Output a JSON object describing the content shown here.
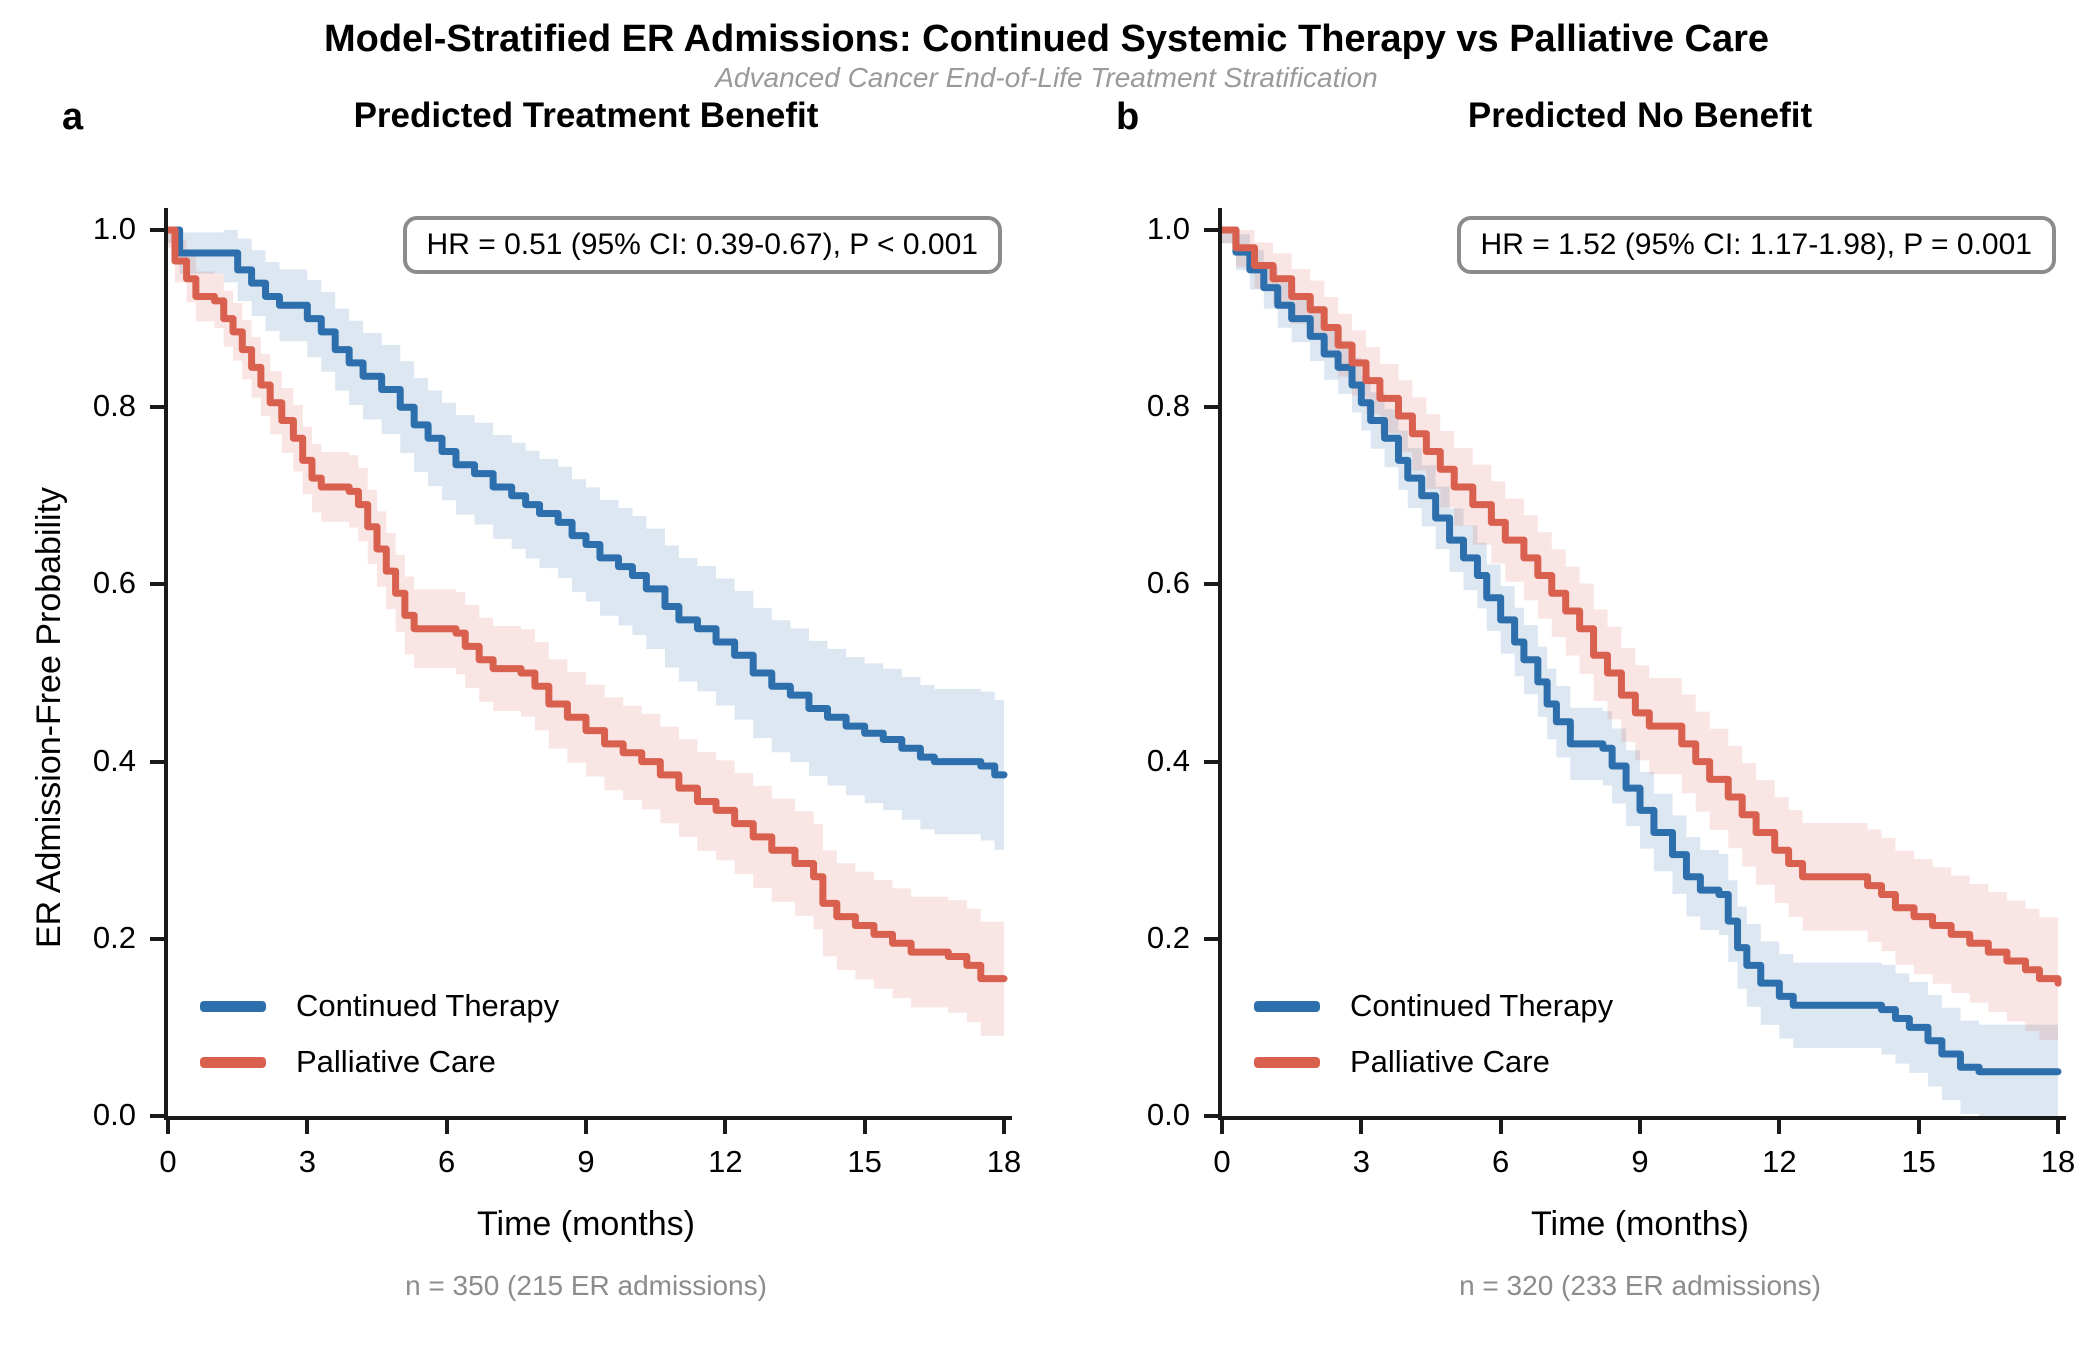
{
  "header": {
    "title": "Model-Stratified ER Admissions: Continued Systemic Therapy vs Palliative Care",
    "subtitle": "Advanced Cancer End-of-Life Treatment Stratification"
  },
  "colors": {
    "continued_therapy": "#2d6fac",
    "palliative_care": "#d9604e",
    "continued_band": "rgba(45,111,172,0.17)",
    "palliative_band": "rgba(217,96,78,0.16)",
    "axis": "#1a1a1a",
    "annotation_border": "#8c8c8c",
    "subtitle_gray": "#9a9a9a",
    "caption_gray": "#8c8c8c"
  },
  "chart_data": [
    {
      "type": "line",
      "subtype": "kaplan-meier-step",
      "panel_label": "a",
      "title": "Predicted Treatment Benefit",
      "annotation": "HR = 0.51 (95% CI: 0.39-0.67), P < 0.001",
      "caption": "n = 350 (215 ER admissions)",
      "xlabel": "Time (months)",
      "ylabel": "ER Admission-Free Probability",
      "xlim": [
        0,
        18
      ],
      "ylim": [
        0.0,
        1.0
      ],
      "xticks": [
        0,
        3,
        6,
        9,
        12,
        15,
        18
      ],
      "yticks": [
        0.0,
        0.2,
        0.4,
        0.6,
        0.8,
        1.0
      ],
      "grid": false,
      "legend_position": "lower-left",
      "series": [
        {
          "name": "Continued Therapy",
          "color": "#2d6fac",
          "band_color": "rgba(45,111,172,0.17)",
          "ci_halfwidth": [
            0.015,
            0.085
          ],
          "points": [
            [
              0,
              1.0
            ],
            [
              0.25,
              0.974
            ],
            [
              1.2,
              0.974
            ],
            [
              1.5,
              0.955
            ],
            [
              1.8,
              0.94
            ],
            [
              2.1,
              0.925
            ],
            [
              2.4,
              0.915
            ],
            [
              3.0,
              0.9
            ],
            [
              3.3,
              0.885
            ],
            [
              3.6,
              0.865
            ],
            [
              3.9,
              0.85
            ],
            [
              4.2,
              0.835
            ],
            [
              4.6,
              0.82
            ],
            [
              5.0,
              0.8
            ],
            [
              5.3,
              0.78
            ],
            [
              5.6,
              0.765
            ],
            [
              5.9,
              0.75
            ],
            [
              6.2,
              0.735
            ],
            [
              6.6,
              0.725
            ],
            [
              7.0,
              0.71
            ],
            [
              7.4,
              0.7
            ],
            [
              7.7,
              0.69
            ],
            [
              8.0,
              0.68
            ],
            [
              8.4,
              0.67
            ],
            [
              8.7,
              0.655
            ],
            [
              9.0,
              0.645
            ],
            [
              9.3,
              0.63
            ],
            [
              9.7,
              0.62
            ],
            [
              10.0,
              0.61
            ],
            [
              10.3,
              0.595
            ],
            [
              10.7,
              0.575
            ],
            [
              11.0,
              0.56
            ],
            [
              11.4,
              0.55
            ],
            [
              11.8,
              0.535
            ],
            [
              12.2,
              0.52
            ],
            [
              12.6,
              0.5
            ],
            [
              13.0,
              0.485
            ],
            [
              13.4,
              0.475
            ],
            [
              13.8,
              0.46
            ],
            [
              14.2,
              0.45
            ],
            [
              14.6,
              0.44
            ],
            [
              15.0,
              0.432
            ],
            [
              15.4,
              0.425
            ],
            [
              15.8,
              0.415
            ],
            [
              16.2,
              0.405
            ],
            [
              16.5,
              0.4
            ],
            [
              17.5,
              0.395
            ],
            [
              17.8,
              0.385
            ],
            [
              18,
              0.385
            ]
          ]
        },
        {
          "name": "Palliative Care",
          "color": "#d9604e",
          "band_color": "rgba(217,96,78,0.16)",
          "ci_halfwidth": [
            0.02,
            0.065
          ],
          "points": [
            [
              0,
              1.0
            ],
            [
              0.15,
              0.965
            ],
            [
              0.4,
              0.945
            ],
            [
              0.6,
              0.925
            ],
            [
              1.0,
              0.92
            ],
            [
              1.2,
              0.9
            ],
            [
              1.4,
              0.885
            ],
            [
              1.6,
              0.865
            ],
            [
              1.8,
              0.845
            ],
            [
              2.0,
              0.825
            ],
            [
              2.2,
              0.805
            ],
            [
              2.45,
              0.785
            ],
            [
              2.7,
              0.765
            ],
            [
              2.9,
              0.74
            ],
            [
              3.1,
              0.72
            ],
            [
              3.3,
              0.71
            ],
            [
              3.9,
              0.705
            ],
            [
              4.1,
              0.69
            ],
            [
              4.3,
              0.665
            ],
            [
              4.5,
              0.64
            ],
            [
              4.7,
              0.615
            ],
            [
              4.9,
              0.59
            ],
            [
              5.1,
              0.565
            ],
            [
              5.3,
              0.55
            ],
            [
              6.2,
              0.545
            ],
            [
              6.4,
              0.53
            ],
            [
              6.7,
              0.515
            ],
            [
              7.0,
              0.505
            ],
            [
              7.6,
              0.5
            ],
            [
              7.9,
              0.485
            ],
            [
              8.2,
              0.465
            ],
            [
              8.6,
              0.45
            ],
            [
              9.0,
              0.435
            ],
            [
              9.4,
              0.42
            ],
            [
              9.8,
              0.41
            ],
            [
              10.2,
              0.4
            ],
            [
              10.6,
              0.385
            ],
            [
              11.0,
              0.37
            ],
            [
              11.4,
              0.355
            ],
            [
              11.8,
              0.345
            ],
            [
              12.2,
              0.33
            ],
            [
              12.6,
              0.315
            ],
            [
              13.0,
              0.3
            ],
            [
              13.5,
              0.285
            ],
            [
              13.9,
              0.27
            ],
            [
              14.1,
              0.24
            ],
            [
              14.4,
              0.225
            ],
            [
              14.8,
              0.215
            ],
            [
              15.2,
              0.205
            ],
            [
              15.6,
              0.195
            ],
            [
              16.0,
              0.185
            ],
            [
              16.8,
              0.18
            ],
            [
              17.2,
              0.17
            ],
            [
              17.5,
              0.155
            ],
            [
              18,
              0.155
            ]
          ]
        }
      ]
    },
    {
      "type": "line",
      "subtype": "kaplan-meier-step",
      "panel_label": "b",
      "title": "Predicted No Benefit",
      "annotation": "HR = 1.52 (95% CI: 1.17-1.98), P = 0.001",
      "caption": "n = 320 (233 ER admissions)",
      "xlabel": "Time (months)",
      "ylabel": "ER Admission-Free Probability",
      "xlim": [
        0,
        18
      ],
      "ylim": [
        0.0,
        1.0
      ],
      "xticks": [
        0,
        3,
        6,
        9,
        12,
        15,
        18
      ],
      "yticks": [
        0.0,
        0.2,
        0.4,
        0.6,
        0.8,
        1.0
      ],
      "grid": false,
      "legend_position": "lower-left",
      "series": [
        {
          "name": "Continued Therapy",
          "color": "#2d6fac",
          "band_color": "rgba(45,111,172,0.17)",
          "ci_halfwidth": [
            0.015,
            0.055
          ],
          "points": [
            [
              0,
              1.0
            ],
            [
              0.3,
              0.975
            ],
            [
              0.6,
              0.955
            ],
            [
              0.9,
              0.935
            ],
            [
              1.2,
              0.915
            ],
            [
              1.5,
              0.9
            ],
            [
              1.9,
              0.88
            ],
            [
              2.2,
              0.86
            ],
            [
              2.5,
              0.845
            ],
            [
              2.8,
              0.825
            ],
            [
              3.0,
              0.805
            ],
            [
              3.2,
              0.785
            ],
            [
              3.5,
              0.765
            ],
            [
              3.8,
              0.74
            ],
            [
              4.0,
              0.72
            ],
            [
              4.3,
              0.7
            ],
            [
              4.6,
              0.675
            ],
            [
              4.9,
              0.65
            ],
            [
              5.2,
              0.63
            ],
            [
              5.5,
              0.61
            ],
            [
              5.7,
              0.585
            ],
            [
              6.0,
              0.56
            ],
            [
              6.3,
              0.535
            ],
            [
              6.5,
              0.515
            ],
            [
              6.8,
              0.49
            ],
            [
              7.0,
              0.465
            ],
            [
              7.2,
              0.445
            ],
            [
              7.5,
              0.42
            ],
            [
              8.2,
              0.415
            ],
            [
              8.4,
              0.395
            ],
            [
              8.7,
              0.37
            ],
            [
              9.0,
              0.345
            ],
            [
              9.3,
              0.32
            ],
            [
              9.7,
              0.295
            ],
            [
              10.0,
              0.27
            ],
            [
              10.3,
              0.255
            ],
            [
              10.7,
              0.25
            ],
            [
              10.9,
              0.22
            ],
            [
              11.1,
              0.19
            ],
            [
              11.3,
              0.17
            ],
            [
              11.6,
              0.15
            ],
            [
              12.0,
              0.135
            ],
            [
              12.3,
              0.125
            ],
            [
              14.2,
              0.12
            ],
            [
              14.5,
              0.11
            ],
            [
              14.8,
              0.1
            ],
            [
              15.2,
              0.085
            ],
            [
              15.5,
              0.07
            ],
            [
              15.9,
              0.055
            ],
            [
              16.3,
              0.05
            ],
            [
              18,
              0.05
            ]
          ]
        },
        {
          "name": "Palliative Care",
          "color": "#d9604e",
          "band_color": "rgba(217,96,78,0.16)",
          "ci_halfwidth": [
            0.015,
            0.07
          ],
          "points": [
            [
              0,
              1.0
            ],
            [
              0.3,
              0.98
            ],
            [
              0.7,
              0.96
            ],
            [
              1.1,
              0.945
            ],
            [
              1.5,
              0.925
            ],
            [
              1.9,
              0.91
            ],
            [
              2.2,
              0.89
            ],
            [
              2.5,
              0.87
            ],
            [
              2.8,
              0.85
            ],
            [
              3.1,
              0.83
            ],
            [
              3.4,
              0.81
            ],
            [
              3.8,
              0.79
            ],
            [
              4.1,
              0.77
            ],
            [
              4.4,
              0.75
            ],
            [
              4.7,
              0.73
            ],
            [
              5.0,
              0.71
            ],
            [
              5.4,
              0.69
            ],
            [
              5.8,
              0.67
            ],
            [
              6.1,
              0.65
            ],
            [
              6.5,
              0.63
            ],
            [
              6.8,
              0.61
            ],
            [
              7.1,
              0.59
            ],
            [
              7.4,
              0.57
            ],
            [
              7.7,
              0.55
            ],
            [
              8.0,
              0.52
            ],
            [
              8.3,
              0.5
            ],
            [
              8.6,
              0.475
            ],
            [
              8.9,
              0.455
            ],
            [
              9.2,
              0.44
            ],
            [
              9.9,
              0.42
            ],
            [
              10.2,
              0.4
            ],
            [
              10.5,
              0.38
            ],
            [
              10.9,
              0.36
            ],
            [
              11.2,
              0.34
            ],
            [
              11.5,
              0.32
            ],
            [
              11.9,
              0.3
            ],
            [
              12.2,
              0.285
            ],
            [
              12.5,
              0.27
            ],
            [
              13.9,
              0.26
            ],
            [
              14.2,
              0.25
            ],
            [
              14.5,
              0.235
            ],
            [
              14.9,
              0.225
            ],
            [
              15.3,
              0.215
            ],
            [
              15.7,
              0.205
            ],
            [
              16.1,
              0.195
            ],
            [
              16.5,
              0.185
            ],
            [
              16.9,
              0.175
            ],
            [
              17.3,
              0.165
            ],
            [
              17.6,
              0.155
            ],
            [
              18,
              0.15
            ]
          ]
        }
      ]
    }
  ]
}
